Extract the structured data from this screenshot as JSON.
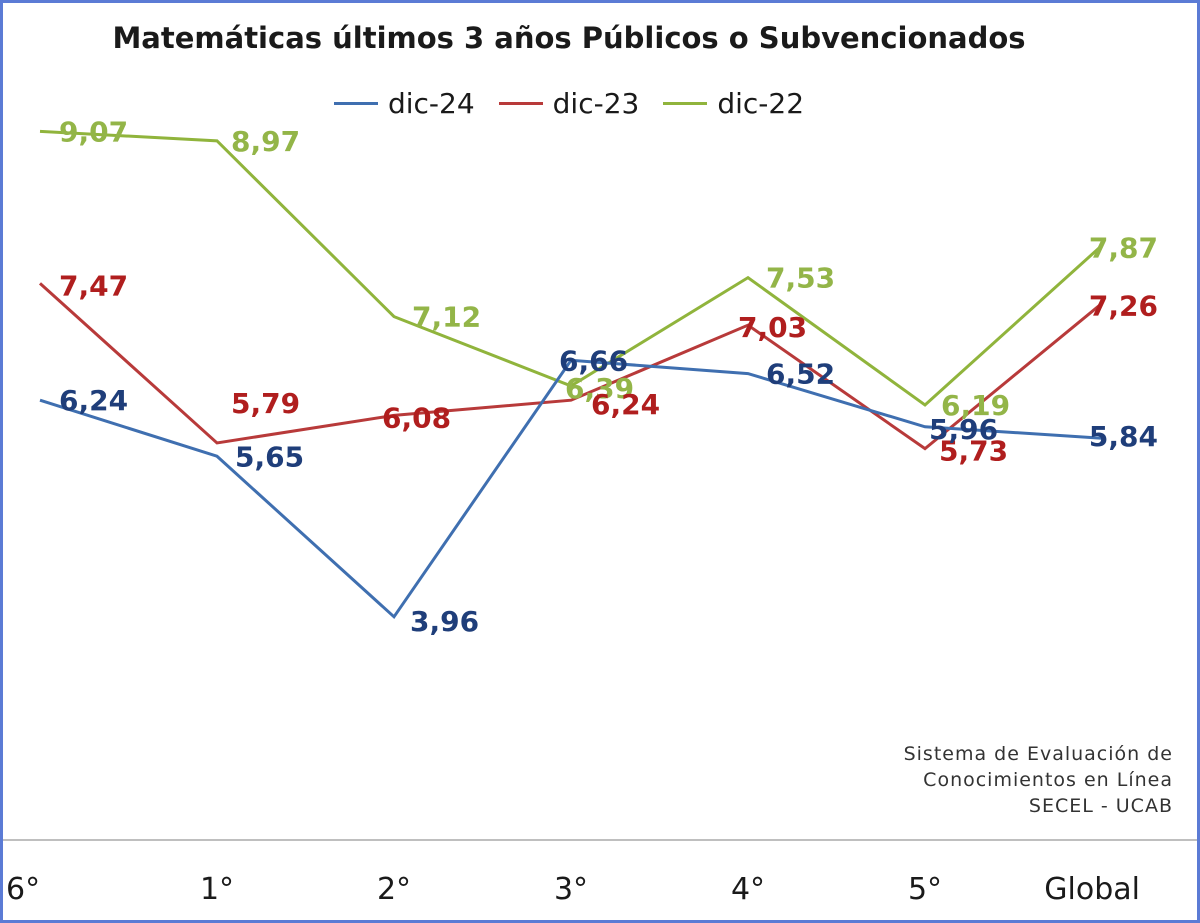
{
  "chart_data": {
    "type": "line",
    "title": "Matemáticas últimos 3 años Públicos o Subvencionados",
    "categories": [
      "6°",
      "1°",
      "2°",
      "3°",
      "4°",
      "5°",
      "Global"
    ],
    "ylim": [
      2,
      10
    ],
    "grid": false,
    "legend_position": "top",
    "series": [
      {
        "name": "dic-24",
        "color": "#3f6fb0",
        "label_color": "#1f3e7a",
        "values": [
          6.24,
          5.65,
          3.96,
          6.66,
          6.52,
          5.96,
          5.84
        ],
        "labels": [
          "6,24",
          "5,65",
          "3,96",
          "6,66",
          "6,52",
          "5,96",
          "5,84"
        ]
      },
      {
        "name": "dic-23",
        "color": "#b83a3a",
        "label_color": "#b01e1e",
        "values": [
          7.47,
          5.79,
          6.08,
          6.24,
          7.03,
          5.73,
          7.26
        ],
        "labels": [
          "7,47",
          "5,79",
          "6,08",
          "6,24",
          "7,03",
          "5,73",
          "7,26"
        ]
      },
      {
        "name": "dic-22",
        "color": "#90b43c",
        "label_color": "#93b548",
        "values": [
          9.07,
          8.97,
          7.12,
          6.39,
          7.53,
          6.19,
          7.87
        ],
        "labels": [
          "9,07",
          "8,97",
          "7,12",
          "6,39",
          "7,53",
          "6,19",
          "7,87"
        ]
      }
    ]
  },
  "credits": {
    "line1": "Sistema de Evaluación de",
    "line2": "Conocimientos en Línea",
    "line3": "SECEL - UCAB"
  },
  "colors": {
    "frame": "#5b7bd5",
    "axis": "#bfbfbf"
  }
}
